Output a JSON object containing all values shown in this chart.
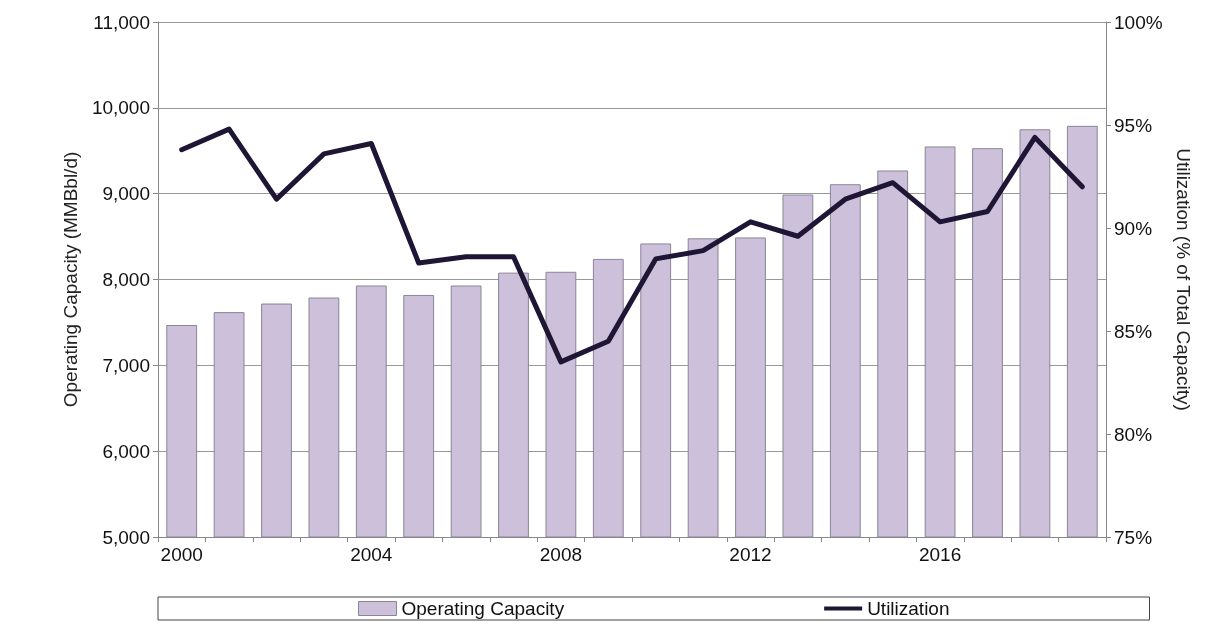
{
  "chart_data": {
    "type": "bar",
    "ylabel": "Operating Capacity (MMBbl/d)",
    "y2label": "Utilization (% of Total Capacity)",
    "categories": [
      "2000",
      null,
      null,
      null,
      "2004",
      null,
      null,
      null,
      "2008",
      null,
      null,
      null,
      "2012",
      null,
      null,
      null,
      "2016",
      null,
      null,
      null
    ],
    "series": [
      {
        "name": "Operating Capacity",
        "color": "#ccc0da",
        "values": [
          7470,
          7620,
          7720,
          7790,
          7930,
          7820,
          7930,
          8080,
          8090,
          8240,
          8420,
          8480,
          8490,
          8990,
          9110,
          9270,
          9550,
          9530,
          9750,
          9790
        ]
      },
      {
        "name": "Utilization",
        "type": "line",
        "axis": "y2",
        "color": "#1f1535",
        "values": [
          93.8,
          94.8,
          91.4,
          93.6,
          94.1,
          88.3,
          88.6,
          88.6,
          83.5,
          84.5,
          88.5,
          88.9,
          90.3,
          89.6,
          91.4,
          92.2,
          90.3,
          90.8,
          94.4,
          92.0
        ]
      }
    ],
    "ylim": [
      5000,
      11000
    ],
    "yticks": [
      {
        "value": 5000,
        "label": "5,000"
      },
      {
        "value": 6000,
        "label": "6,000"
      },
      {
        "value": 7000,
        "label": "7,000"
      },
      {
        "value": 8000,
        "label": "8,000"
      },
      {
        "value": 9000,
        "label": "9,000"
      },
      {
        "value": 10000,
        "label": "10,000"
      },
      {
        "value": 11000,
        "label": "11,000"
      }
    ],
    "y2lim": [
      75,
      100
    ],
    "y2ticks": [
      {
        "value": 75,
        "label": "75%"
      },
      {
        "value": 80,
        "label": "80%"
      },
      {
        "value": 85,
        "label": "85%"
      },
      {
        "value": 90,
        "label": "90%"
      },
      {
        "value": 95,
        "label": "95%"
      },
      {
        "value": 100,
        "label": "100%"
      }
    ],
    "grid": "y",
    "legend": "bottom",
    "marker": "none",
    "line_style": "solid"
  }
}
